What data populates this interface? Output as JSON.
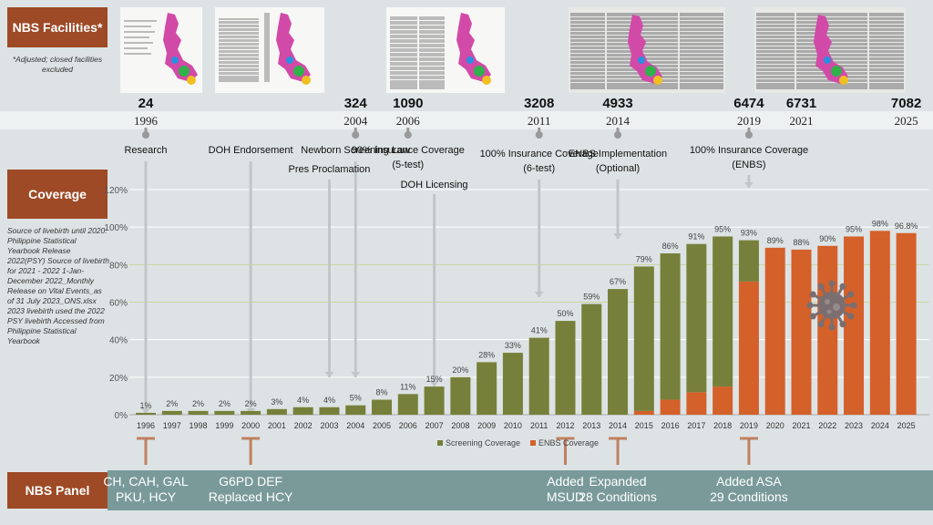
{
  "facilities_label": "NBS Facilities*",
  "facilities_note": "*Adjusted; closed facilities excluded",
  "coverage_label": "Coverage",
  "panel_label": "NBS Panel",
  "source_note": "Source of livebirth until 2020: Philippine Statistical Yearbook Release 2022(PSY) Source of livebirth for 2021 - 2022 1-Jan-December 2022_Monthly Release on Vital Events_as of 31 July 2023_ONS.xlsx 2023 livebirth used the 2022 PSY livebirth Accessed from Philippine Statistical Yearbook",
  "timeline": [
    {
      "count": "24",
      "year": "1996"
    },
    {
      "count": "324",
      "year": "2004"
    },
    {
      "count": "1090",
      "year": "2006"
    },
    {
      "count": "3208",
      "year": "2011"
    },
    {
      "count": "4933",
      "year": "2014"
    },
    {
      "count": "6474",
      "year": "2019"
    },
    {
      "count": "6731",
      "year": "2021"
    },
    {
      "count": "7082",
      "year": "2025"
    }
  ],
  "events": [
    {
      "text": "Research",
      "year": "1996"
    },
    {
      "text": "DOH Endorsement",
      "year": "2000"
    },
    {
      "text": "Newborn Screening Law",
      "year": "2004"
    },
    {
      "text": "Pres Proclamation",
      "year": "2003"
    },
    {
      "text": "90% Insurance Coverage (5-test)",
      "year": "2006"
    },
    {
      "text": "DOH Licensing",
      "year": "2007"
    },
    {
      "text": "100% Insurance Coverage (6-test)",
      "year": "2011"
    },
    {
      "text": "ENBS Implementation (Optional)",
      "year": "2014"
    },
    {
      "text": "100% Insurance Coverage (ENBS)",
      "year": "2019"
    }
  ],
  "panel": [
    {
      "text": "CH, CAH, GAL PKU, HCY",
      "year": "1996"
    },
    {
      "text": "G6PD DEF Replaced HCY",
      "year": "2000"
    },
    {
      "text": "Added MSUD",
      "year": "2012"
    },
    {
      "text": "Expanded 28 Conditions",
      "year": "2014"
    },
    {
      "text": "Added ASA 29 Conditions",
      "year": "2019"
    }
  ],
  "colors": {
    "screening": "#76803a",
    "enbs": "#d4602a",
    "label_box": "#9e4a26",
    "panel_band": "#7a9a9a"
  },
  "chart_data": {
    "type": "bar",
    "categories": [
      "1996",
      "1997",
      "1998",
      "1999",
      "2000",
      "2001",
      "2002",
      "2003",
      "2004",
      "2005",
      "2006",
      "2007",
      "2008",
      "2009",
      "2010",
      "2011",
      "2012",
      "2013",
      "2014",
      "2015",
      "2016",
      "2017",
      "2018",
      "2019",
      "2020",
      "2021",
      "2022",
      "2023",
      "2024",
      "2025"
    ],
    "series": [
      {
        "name": "Screening Coverage",
        "values": [
          1,
          2,
          2,
          2,
          2,
          3,
          4,
          4,
          5,
          8,
          11,
          15,
          20,
          28,
          33,
          41,
          50,
          59,
          67,
          77,
          78,
          79,
          80,
          22,
          0,
          0,
          0,
          0,
          0,
          0
        ]
      },
      {
        "name": "ENBS Coverage",
        "values": [
          0,
          0,
          0,
          0,
          0,
          0,
          0,
          0,
          0,
          0,
          0,
          0,
          0,
          0,
          0,
          0,
          0,
          0,
          0,
          2,
          8,
          12,
          15,
          71,
          89,
          88,
          90,
          95,
          98,
          96.8
        ]
      }
    ],
    "data_labels": [
      "1%",
      "2%",
      "2%",
      "2%",
      "2%",
      "3%",
      "4%",
      "4%",
      "5%",
      "8%",
      "11%",
      "15%",
      "20%",
      "28%",
      "33%",
      "41%",
      "50%",
      "59%",
      "67%",
      "79%",
      "86%",
      "91%",
      "95%",
      "93%",
      "89%",
      "88%",
      "90%",
      "95%",
      "98%",
      "96.8%"
    ],
    "ylim": [
      0,
      120
    ],
    "yticks": [
      "0%",
      "20%",
      "40%",
      "60%",
      "80%",
      "100%",
      "120%"
    ],
    "legend": "bottom-center",
    "grid": true
  }
}
